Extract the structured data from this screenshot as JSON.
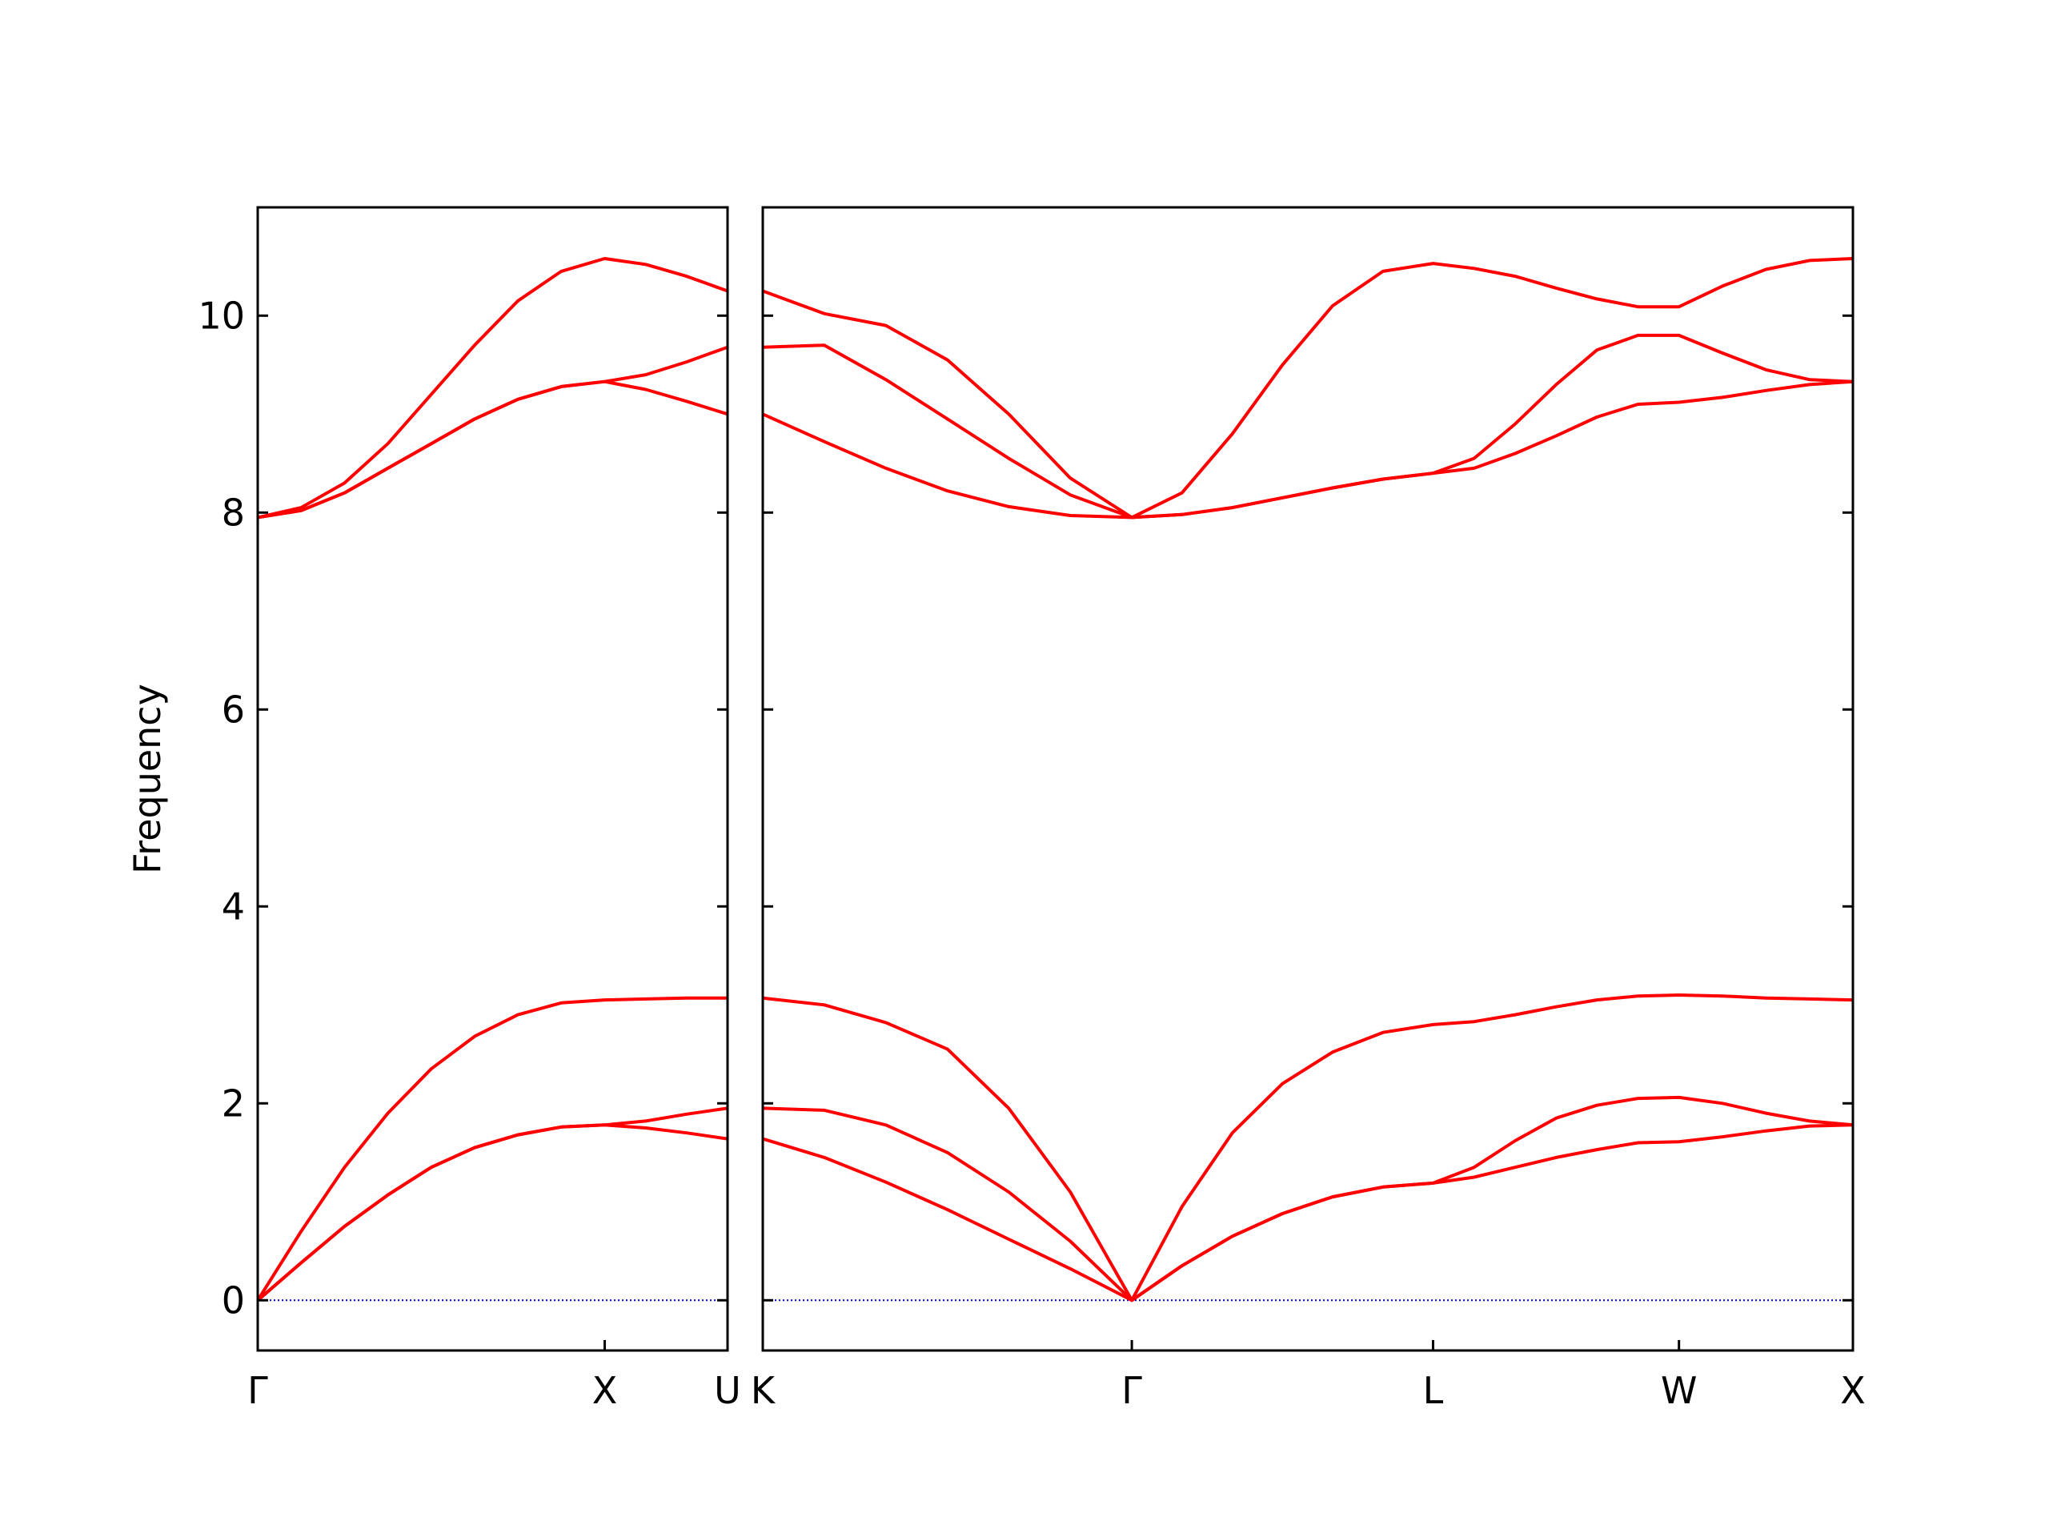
{
  "chart_data": [
    {
      "type": "line",
      "ylabel": "Frequency",
      "x": [
        0,
        0.125,
        0.25,
        0.375,
        0.5,
        0.625,
        0.75,
        0.875,
        1,
        1.118,
        1.236,
        1.354
      ],
      "xlim": [
        0,
        1.354
      ],
      "xticks": [
        {
          "value": 0,
          "label": "Γ"
        },
        {
          "value": 1,
          "label": "X"
        },
        {
          "value": 1.354,
          "label": "U"
        }
      ],
      "ylim": [
        -0.51,
        11.1
      ],
      "yticks": [
        0,
        2,
        4,
        6,
        8,
        10
      ],
      "series": [
        {
          "color": "#ff0000",
          "values": [
            7.95,
            8.05,
            8.3,
            8.7,
            9.2,
            9.7,
            10.15,
            10.45,
            10.58,
            10.52,
            10.4,
            10.25
          ]
        },
        {
          "color": "#ff0000",
          "values": [
            7.95,
            8.02,
            8.2,
            8.45,
            8.7,
            8.95,
            9.15,
            9.28,
            9.33,
            9.4,
            9.53,
            9.68
          ]
        },
        {
          "color": "#ff0000",
          "values": [
            7.95,
            8.02,
            8.2,
            8.45,
            8.7,
            8.95,
            9.15,
            9.28,
            9.33,
            9.25,
            9.13,
            9.0
          ]
        },
        {
          "color": "#ff0000",
          "values": [
            0,
            0.7,
            1.35,
            1.9,
            2.35,
            2.68,
            2.9,
            3.02,
            3.05,
            3.06,
            3.07,
            3.07
          ]
        },
        {
          "color": "#ff0000",
          "values": [
            0,
            0.38,
            0.75,
            1.07,
            1.35,
            1.55,
            1.68,
            1.76,
            1.78,
            1.82,
            1.89,
            1.95
          ]
        },
        {
          "color": "#ff0000",
          "values": [
            0,
            0.38,
            0.75,
            1.07,
            1.35,
            1.55,
            1.68,
            1.76,
            1.78,
            1.75,
            1.7,
            1.64
          ]
        }
      ]
    },
    {
      "type": "line",
      "x": [
        0,
        0.177,
        0.354,
        0.531,
        0.707,
        0.884,
        1.061,
        1.205,
        1.35,
        1.494,
        1.638,
        1.783,
        1.927,
        2.045,
        2.163,
        2.281,
        2.398,
        2.516,
        2.634,
        2.759,
        2.884,
        3.009,
        3.134
      ],
      "xlim": [
        0,
        3.134
      ],
      "xticks": [
        {
          "value": 0,
          "label": "K"
        },
        {
          "value": 1.061,
          "label": "Γ"
        },
        {
          "value": 1.927,
          "label": "L"
        },
        {
          "value": 2.634,
          "label": "W"
        },
        {
          "value": 3.134,
          "label": "X"
        }
      ],
      "ylim": [
        -0.51,
        11.1
      ],
      "yticks": [
        0,
        2,
        4,
        6,
        8,
        10
      ],
      "series": [
        {
          "color": "#ff0000",
          "values": [
            10.25,
            10.02,
            9.9,
            9.55,
            9.0,
            8.35,
            7.95,
            8.2,
            8.8,
            9.5,
            10.1,
            10.45,
            10.53,
            10.48,
            10.4,
            10.28,
            10.17,
            10.09,
            10.09,
            10.3,
            10.47,
            10.56,
            10.58
          ]
        },
        {
          "color": "#ff0000",
          "values": [
            9.68,
            9.7,
            9.35,
            8.95,
            8.55,
            8.18,
            7.95,
            7.98,
            8.05,
            8.15,
            8.25,
            8.34,
            8.4,
            8.55,
            8.9,
            9.3,
            9.65,
            9.8,
            9.8,
            9.62,
            9.45,
            9.35,
            9.33
          ]
        },
        {
          "color": "#ff0000",
          "values": [
            9.0,
            8.72,
            8.45,
            8.22,
            8.06,
            7.97,
            7.95,
            7.98,
            8.05,
            8.15,
            8.25,
            8.34,
            8.4,
            8.45,
            8.6,
            8.78,
            8.97,
            9.1,
            9.12,
            9.17,
            9.24,
            9.3,
            9.33
          ]
        },
        {
          "color": "#ff0000",
          "values": [
            3.07,
            3.0,
            2.82,
            2.55,
            1.95,
            1.1,
            0,
            0.95,
            1.7,
            2.2,
            2.52,
            2.72,
            2.8,
            2.83,
            2.9,
            2.98,
            3.05,
            3.09,
            3.1,
            3.09,
            3.07,
            3.06,
            3.05
          ]
        },
        {
          "color": "#ff0000",
          "values": [
            1.95,
            1.93,
            1.78,
            1.5,
            1.1,
            0.6,
            0,
            0.35,
            0.65,
            0.88,
            1.05,
            1.15,
            1.19,
            1.35,
            1.62,
            1.85,
            1.98,
            2.05,
            2.06,
            2.0,
            1.9,
            1.82,
            1.78
          ]
        },
        {
          "color": "#ff0000",
          "values": [
            1.64,
            1.45,
            1.2,
            0.92,
            0.62,
            0.32,
            0,
            0.35,
            0.65,
            0.88,
            1.05,
            1.15,
            1.19,
            1.25,
            1.35,
            1.45,
            1.53,
            1.6,
            1.61,
            1.66,
            1.72,
            1.77,
            1.78
          ]
        }
      ]
    }
  ]
}
